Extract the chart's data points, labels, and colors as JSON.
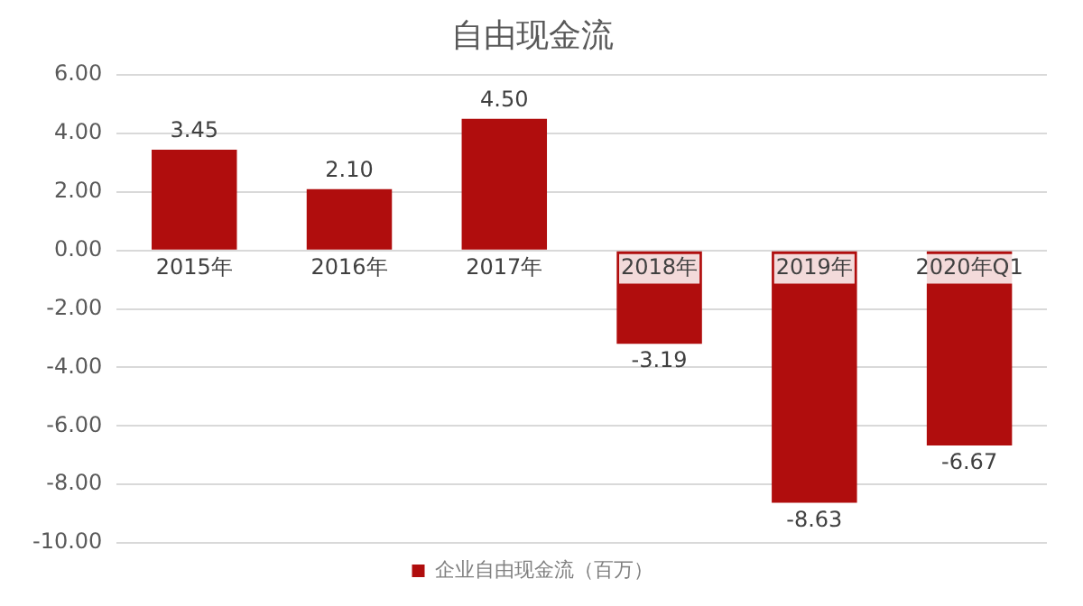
{
  "chart_data": {
    "type": "bar",
    "title": "自由现金流",
    "categories": [
      "2015年",
      "2016年",
      "2017年",
      "2018年",
      "2019年",
      "2020年Q1"
    ],
    "series": [
      {
        "name": "企业自由现金流（百万）",
        "color": "#b00d0d",
        "values": [
          3.45,
          2.1,
          4.5,
          -3.19,
          -8.63,
          -6.67
        ],
        "value_labels": [
          "3.45",
          "2.10",
          "4.50",
          "-3.19",
          "-8.63",
          "-6.67"
        ]
      }
    ],
    "ylim": [
      -10,
      6
    ],
    "yticks": [
      {
        "value": -10,
        "label": "-10.00"
      },
      {
        "value": -8,
        "label": "-8.00"
      },
      {
        "value": -6,
        "label": "-6.00"
      },
      {
        "value": -4,
        "label": "-4.00"
      },
      {
        "value": -2,
        "label": "-2.00"
      },
      {
        "value": 0,
        "label": "0.00"
      },
      {
        "value": 2,
        "label": "2.00"
      },
      {
        "value": 4,
        "label": "4.00"
      },
      {
        "value": 6,
        "label": "6.00"
      }
    ],
    "grid": "y",
    "legend": "bottom"
  }
}
